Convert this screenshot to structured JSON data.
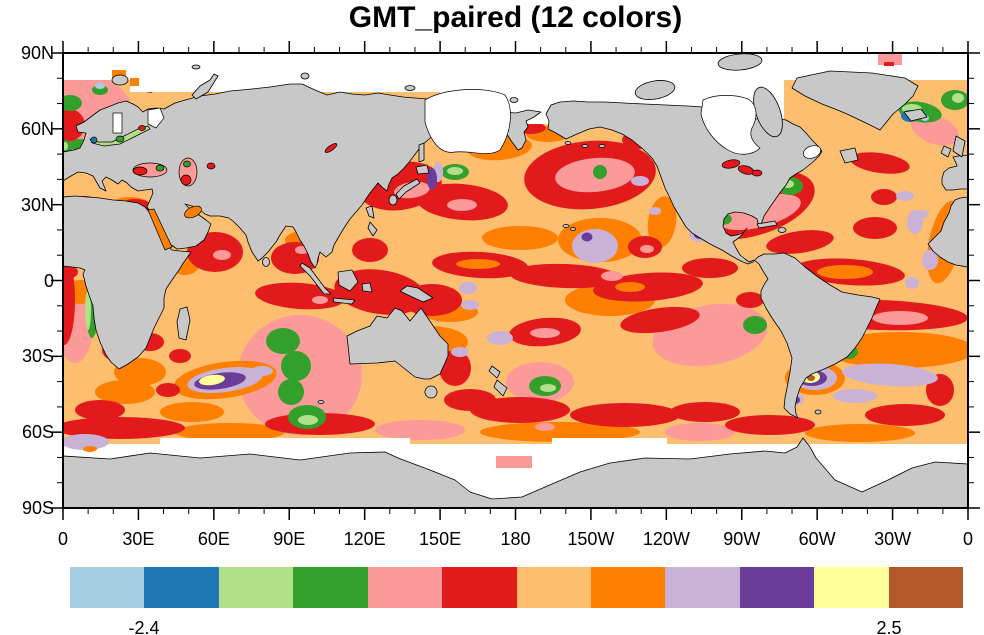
{
  "title": "GMT_paired (12 colors)",
  "axes": {
    "lon": {
      "labels": [
        "0",
        "30E",
        "60E",
        "90E",
        "120E",
        "150E",
        "180",
        "150W",
        "120W",
        "90W",
        "60W",
        "30W",
        "0"
      ],
      "major_step_deg": 30,
      "minor_step_deg": 10
    },
    "lat": {
      "labels": [
        "90N",
        "60N",
        "30N",
        "0",
        "30S",
        "60S",
        "90S"
      ],
      "major_step_deg": 30,
      "minor_step_deg": 10
    }
  },
  "colorbar": {
    "left_label": "-2.4",
    "right_label": "2.5",
    "colors": [
      "#A6CEE3",
      "#1F78B4",
      "#B2DF8A",
      "#33A02C",
      "#FB9A99",
      "#E31A1C",
      "#FDBF6F",
      "#FF7F00",
      "#CAB2D6",
      "#6A3D9A",
      "#FFFF99",
      "#B15928"
    ]
  },
  "palette": {
    "lightblue": "#A6CEE3",
    "blue": "#1F78B4",
    "lightgreen": "#B2DF8A",
    "green": "#33A02C",
    "pink": "#FB9A99",
    "red": "#E31A1C",
    "lightorange": "#FDBF6F",
    "orange": "#FF7F00",
    "lightpurple": "#CAB2D6",
    "purple": "#6A3D9A",
    "lightyellow": "#FFFF99",
    "brown": "#B15928",
    "land": "#C8C8C8",
    "missing": "#FFFFFF",
    "coastline": "#000000"
  },
  "chart_data": {
    "type": "heatmap",
    "subtype": "filled_contour_world_map",
    "title": "GMT_paired (12 colors)",
    "colormap": "GMT_paired",
    "n_colors": 12,
    "projection": "cylindrical_equidistant",
    "lon_range_deg_east": [
      0,
      360
    ],
    "lat_range": [
      -90,
      90
    ],
    "x_tick_labels": [
      "0",
      "30E",
      "60E",
      "90E",
      "120E",
      "150E",
      "180",
      "150W",
      "120W",
      "90W",
      "60W",
      "30W",
      "0"
    ],
    "y_tick_labels": [
      "90N",
      "60N",
      "30N",
      "0",
      "30S",
      "60S",
      "90S"
    ],
    "contour_level_boundaries": [
      -2.4,
      -1.91,
      -1.42,
      -0.93,
      -0.44,
      0.05,
      0.54,
      1.03,
      1.52,
      2.01,
      2.5
    ],
    "labeled_boundaries": [
      "-2.4",
      "2.5"
    ],
    "legend_position": "bottom",
    "grid": false,
    "field_description": "Ocean-only anomaly field; land masked gray, polar/sea-ice cells white. Ocean dominated by mid-range values (light-orange/orange/red with pink cores). Local extremes: purple-yellow-brown maxima in the SW Indian Ocean (~45E,42S) and Argentine Basin (~45W,42S); purple spots near Hawaii and Gulf of Mexico; green/light-green minima in mid-Indian Ocean, NW/NE Pacific, NW Atlantic, Nordic Seas and near Iceland (with blue/light-blue cells); lavender patches in subtropical gyres.",
    "notable_features": [
      {
        "lon": "45E",
        "lat": "42S",
        "value_bin": "2.01 to >2.5 (purple/yellow core)"
      },
      {
        "lon": "45W",
        "lat": "42S",
        "value_bin": ">2.5 at center (brown dot in yellow/purple core)"
      },
      {
        "lon": "155W",
        "lat": "22N",
        "value_bin": "1.52–2.5 (lavender with purple dot, near Hawaii)"
      },
      {
        "lon": "80E",
        "lat": "35S",
        "value_bin": "-0.93 to -0.44 (green minimum band)"
      },
      {
        "lon": "20W",
        "lat": "64N",
        "value_bin": "-2.4 to -1.42 (blue/green cells near Iceland)"
      },
      {
        "lon": "150W",
        "lat": "45N",
        "value_bin": "0.05–1.03 ring (red with pink core, NE Pacific)"
      },
      {
        "lon": "45W",
        "lat": "42N",
        "value_bin": "0.05–1.03 ring (red with pink core, NW Atlantic)"
      }
    ]
  }
}
